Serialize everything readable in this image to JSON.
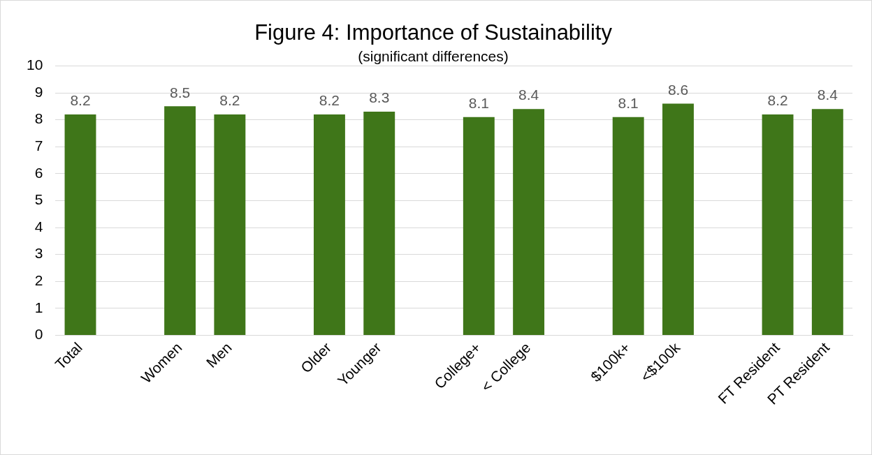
{
  "chart_data": {
    "type": "bar",
    "title": "Figure 4: Importance of Sustainability",
    "subtitle": "(significant differences)",
    "categories": [
      "Total",
      null,
      "Women",
      "Men",
      null,
      "Older",
      "Younger",
      null,
      "College+",
      "< College",
      null,
      "$100k+",
      "<$100k",
      null,
      "FT Resident",
      "PT Resident"
    ],
    "values": [
      8.2,
      null,
      8.5,
      8.2,
      null,
      8.2,
      8.3,
      null,
      8.1,
      8.4,
      null,
      8.1,
      8.6,
      null,
      8.2,
      8.4
    ],
    "color": "#3f7619",
    "ylim": [
      0,
      10
    ],
    "yticks": [
      0,
      1,
      2,
      3,
      4,
      5,
      6,
      7,
      8,
      9,
      10
    ],
    "grid": "y",
    "data_labels": true,
    "legend": false
  }
}
